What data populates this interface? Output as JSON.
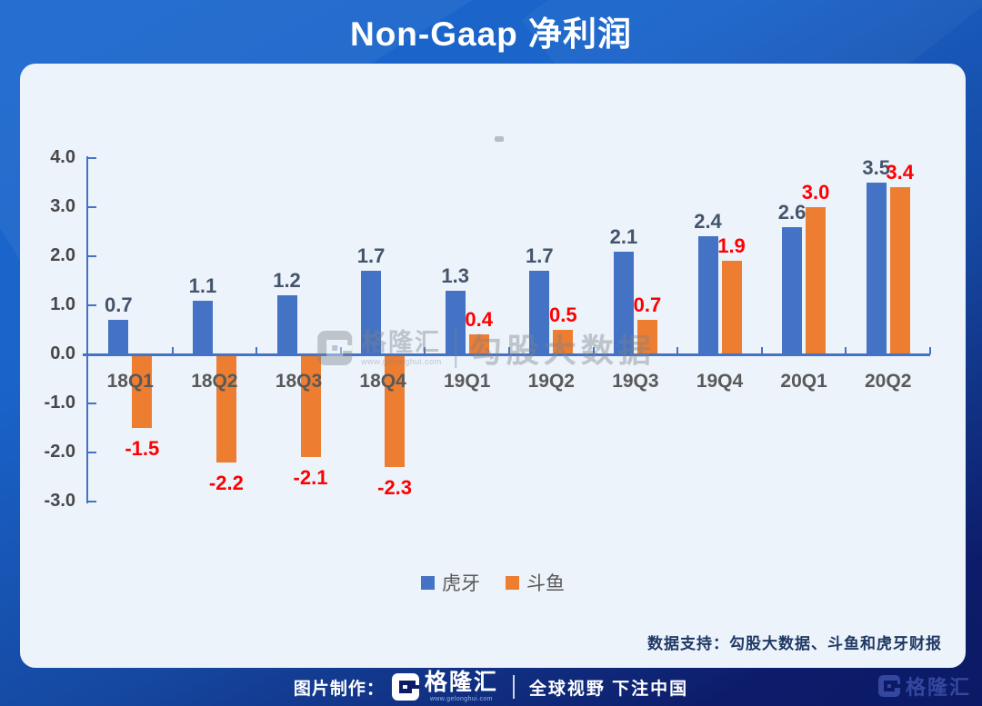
{
  "title": "Non-Gaap 净利润",
  "chart_data": {
    "type": "bar",
    "title": "Non-Gaap 净利润",
    "categories": [
      "18Q1",
      "18Q2",
      "18Q3",
      "18Q4",
      "19Q1",
      "19Q2",
      "19Q3",
      "19Q4",
      "20Q1",
      "20Q2"
    ],
    "series": [
      {
        "name": "虎牙",
        "color": "#4472C4",
        "label_color": "#44546A",
        "values": [
          0.7,
          1.1,
          1.2,
          1.7,
          1.3,
          1.7,
          2.1,
          2.4,
          2.6,
          3.5
        ]
      },
      {
        "name": "斗鱼",
        "color": "#ED7D31",
        "label_color": "#FE0000",
        "values": [
          -1.5,
          -2.2,
          -2.1,
          -2.3,
          0.4,
          0.5,
          0.7,
          1.9,
          3.0,
          3.4
        ]
      }
    ],
    "ylim": [
      -3.0,
      4.0
    ],
    "y_tick_interval": 1.0,
    "y_tick_labels": [
      "4.0",
      "3.0",
      "2.0",
      "1.0",
      "0.0",
      "-1.0",
      "-2.0",
      "-3.0"
    ],
    "grid": false,
    "legend_position": "bottom-center",
    "value_labels": "every bar, one decimal; negative labels below bars"
  },
  "colors": {
    "axis": "#4472C4",
    "huya_bar": "#4472C4",
    "douyu_bar": "#ED7D31",
    "huya_value_label": "#44546A",
    "douyu_value_label": "#FE0000",
    "card_background": "#EDF3FB",
    "background_top": "#1B68CE",
    "background_bottom": "#0C1A66",
    "note_text": "#1F3864"
  },
  "watermark": {
    "brand": "格隆汇",
    "brand_url": "www.gelonghui.com",
    "product": "勾股大数据"
  },
  "note": {
    "text": "数据支持：勾股大数据、斗鱼和虎牙财报"
  },
  "footer": {
    "made_by": "图片制作：",
    "brand": "格隆汇",
    "brand_url": "www.gelonghui.com",
    "slogan": "全球视野 下注中国",
    "corner_brand": "格隆汇"
  }
}
